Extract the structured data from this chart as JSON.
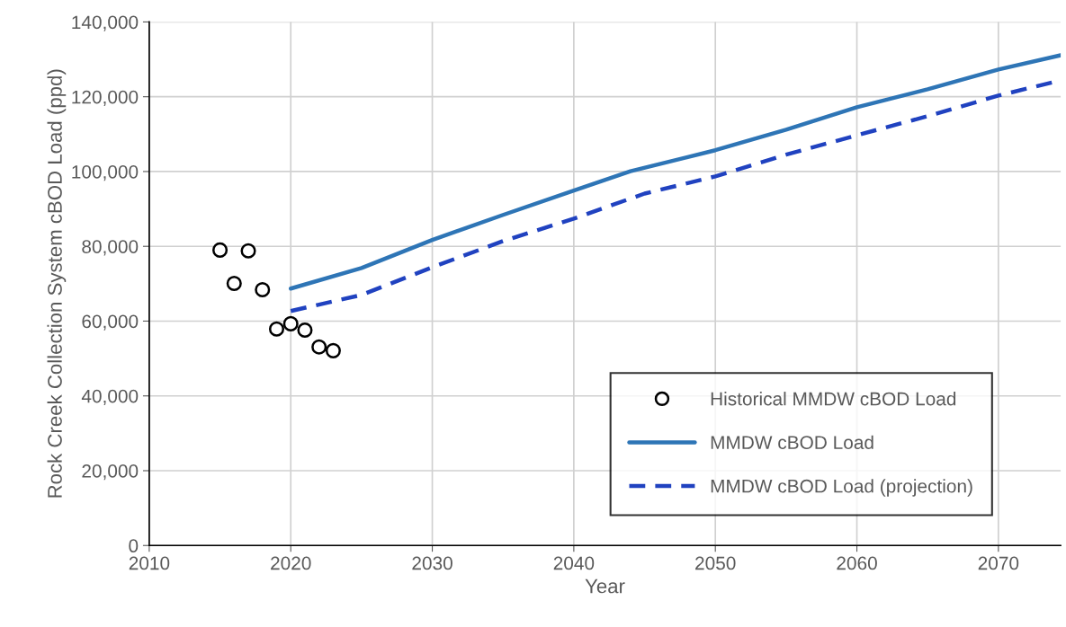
{
  "chart_data": {
    "type": "line",
    "xlabel": "Year",
    "ylabel": "Rock Creek Collection System cBOD Load (ppd)",
    "xlim": [
      2010,
      2074.4
    ],
    "xticks": [
      2010,
      2020,
      2030,
      2040,
      2050,
      2060,
      2070
    ],
    "ylim": [
      0,
      140000
    ],
    "yticks": [
      {
        "value": 0,
        "label": "0"
      },
      {
        "value": 20000,
        "label": "20,000"
      },
      {
        "value": 40000,
        "label": "40,000"
      },
      {
        "value": 60000,
        "label": "60,000"
      },
      {
        "value": 80000,
        "label": "80,000"
      },
      {
        "value": 100000,
        "label": "100,000"
      },
      {
        "value": 120000,
        "label": "120,000"
      },
      {
        "value": 140000,
        "label": "140,000"
      }
    ],
    "grid": true,
    "legend": "bottom right",
    "series": [
      {
        "name": "Historical MMDW cBOD Load",
        "type": "scatter",
        "marker": "circle",
        "color": "#000000",
        "x": [
          2015,
          2016,
          2017,
          2018,
          2019,
          2020,
          2021,
          2022,
          2023
        ],
        "values": [
          79000,
          70100,
          78800,
          68400,
          57900,
          59300,
          57600,
          53100,
          52100
        ]
      },
      {
        "name": "MMDW cBOD Load",
        "line_style": "solid",
        "color": "#2e75b6",
        "x": [
          2020,
          2025,
          2030,
          2035,
          2040,
          2044,
          2050,
          2055,
          2060,
          2065,
          2070,
          2074.4
        ],
        "values": [
          68700,
          74200,
          81700,
          88400,
          94900,
          100100,
          105700,
          111200,
          117200,
          122000,
          127300,
          131100
        ]
      },
      {
        "name": "MMDW cBOD Load (projection)",
        "line_style": "dashed",
        "color": "#2042c0",
        "x": [
          2020,
          2025,
          2030,
          2035,
          2040,
          2045,
          2050,
          2055,
          2060,
          2065,
          2070,
          2074.4
        ],
        "values": [
          62700,
          67000,
          74400,
          81400,
          87400,
          94100,
          98700,
          104500,
          109700,
          114800,
          120300,
          124400
        ]
      }
    ]
  }
}
